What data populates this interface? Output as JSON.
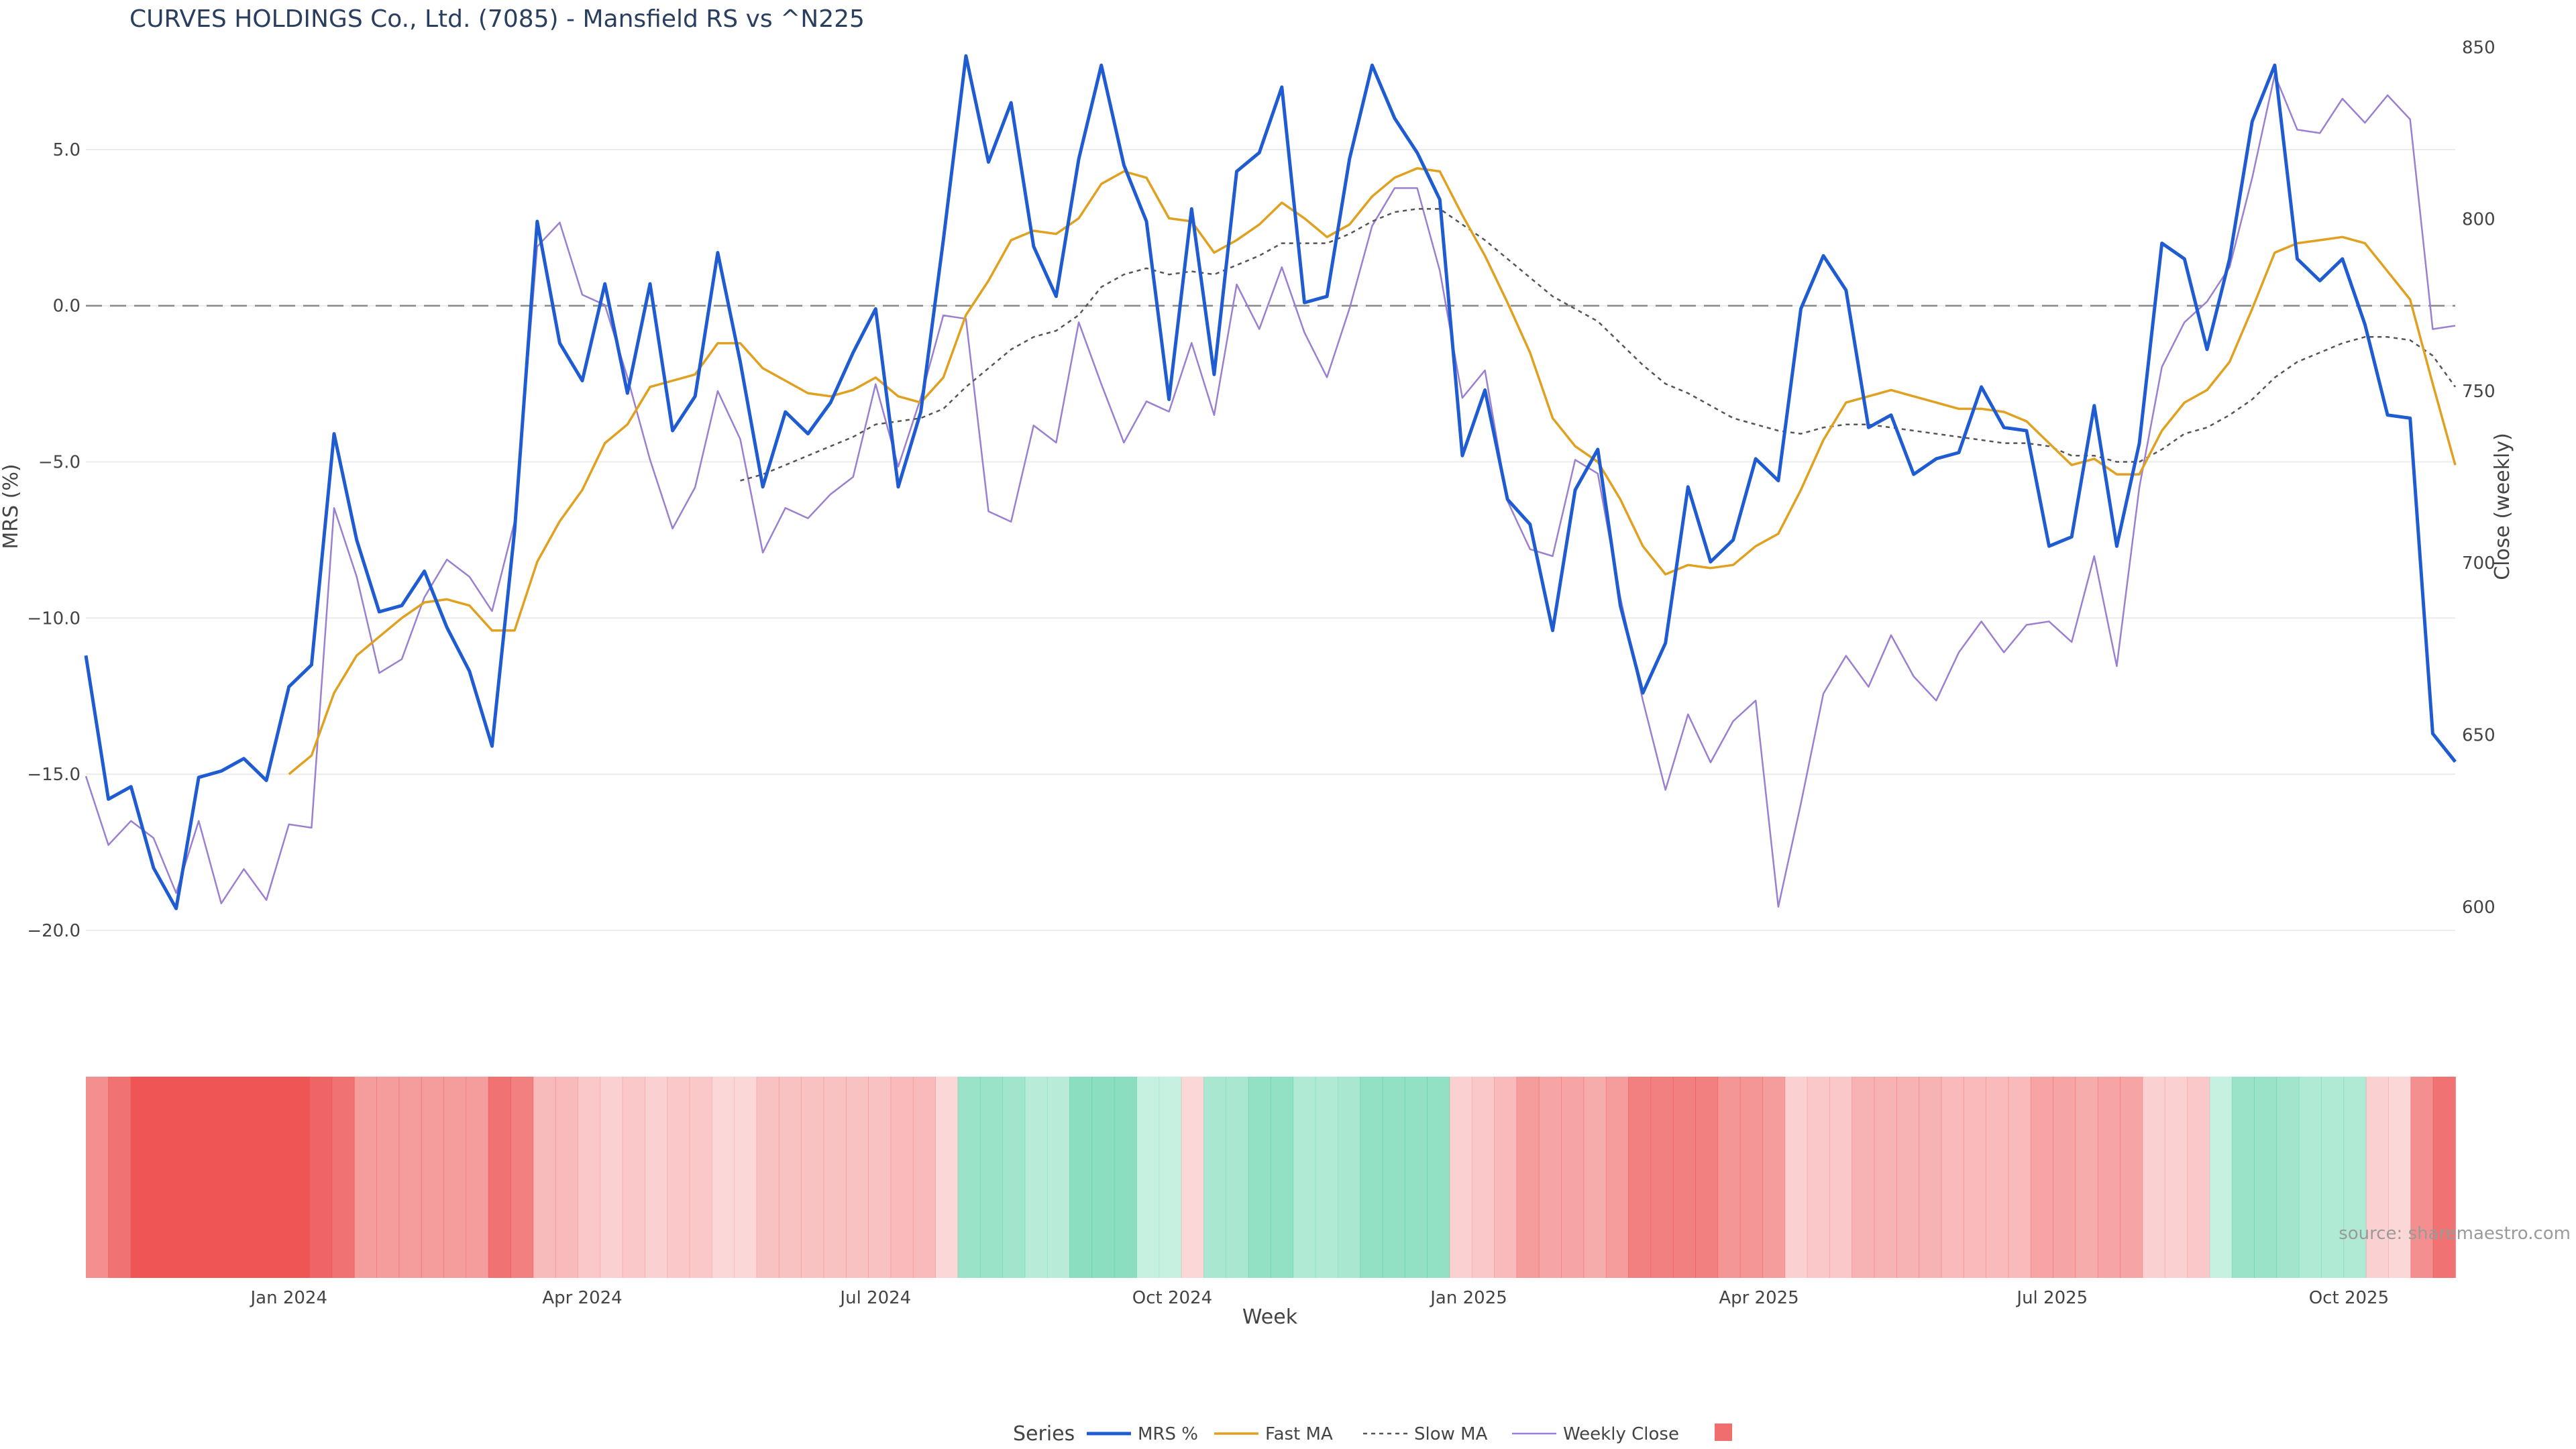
{
  "title": "CURVES HOLDINGS Co., Ltd. (7085) - Mansfield RS vs ^N225",
  "source": "source: sharemaestro.com",
  "chart_data": {
    "type": "line",
    "title": "CURVES HOLDINGS Co., Ltd. (7085) - Mansfield RS vs ^N225",
    "xlabel": "Week",
    "ylabel_left": "MRS (%)",
    "ylabel_right": "Close (weekly)",
    "x_start": "2023-10-30",
    "x_end": "2025-11-03",
    "x_ticks": [
      {
        "date": "2024-01-01",
        "label": "Jan 2024"
      },
      {
        "date": "2024-04-01",
        "label": "Apr 2024"
      },
      {
        "date": "2024-07-01",
        "label": "Jul 2024"
      },
      {
        "date": "2024-10-01",
        "label": "Oct 2024"
      },
      {
        "date": "2025-01-01",
        "label": "Jan 2025"
      },
      {
        "date": "2025-04-01",
        "label": "Apr 2025"
      },
      {
        "date": "2025-07-01",
        "label": "Jul 2025"
      },
      {
        "date": "2025-10-01",
        "label": "Oct 2025"
      }
    ],
    "y_left_ticks": [
      "5.0",
      "0.0",
      "−5.0",
      "−10.0",
      "−15.0",
      "−20.0"
    ],
    "y_left_range": [
      -22,
      8.5
    ],
    "y_right_ticks": [
      "850",
      "800",
      "750",
      "700",
      "650",
      "600"
    ],
    "y_right_range": [
      575,
      852
    ],
    "zero_line": 0,
    "grid": true,
    "legend_title": "Series",
    "legend_position": "bottom-center",
    "colors": {
      "mrs": "#1f5bd1",
      "fast": "#e0a020",
      "slow": "#555555",
      "close": "#9b7fd0",
      "strip_pos": "#4fcfa0",
      "strip_neg": "#ee5555"
    },
    "series": [
      {
        "name": "MRS %",
        "key": "mrs",
        "values": [
          -11.2,
          -15.8,
          -15.4,
          -18.0,
          -19.3,
          -15.1,
          -14.9,
          -14.5,
          -15.2,
          -12.2,
          -11.5,
          -4.1,
          -7.5,
          -9.8,
          -9.6,
          -8.5,
          -10.3,
          -11.7,
          -14.1,
          -7.2,
          2.7,
          -1.2,
          -2.4,
          0.7,
          -2.8,
          0.7,
          -4.0,
          -2.9,
          1.7,
          -1.8,
          -5.8,
          -3.4,
          -4.1,
          -3.1,
          -1.5,
          -0.1,
          -5.8,
          -3.4,
          2.1,
          8.0,
          4.6,
          6.5,
          1.9,
          0.3,
          4.7,
          7.7,
          4.5,
          2.7,
          -3.0,
          3.1,
          -2.2,
          4.3,
          4.9,
          7.0,
          0.1,
          0.3,
          4.7,
          7.7,
          6.0,
          4.9,
          3.4,
          -4.8,
          -2.7,
          -6.2,
          -7.0,
          -10.4,
          -5.9,
          -4.6,
          -9.6,
          -12.4,
          -10.8,
          -5.8,
          -8.2,
          -7.5,
          -4.9,
          -5.6,
          -0.1,
          1.6,
          0.5,
          -3.9,
          -3.5,
          -5.4,
          -4.9,
          -4.7,
          -2.6,
          -3.9,
          -4.0,
          -7.7,
          -7.4,
          -3.2,
          -7.7,
          -4.4,
          2.0,
          1.5,
          -1.4,
          1.5,
          5.9,
          7.7,
          1.5,
          0.8,
          1.5,
          -0.6,
          -3.5,
          -3.6,
          -13.7,
          -14.6
        ]
      },
      {
        "name": "Fast MA",
        "key": "fast",
        "values": [
          null,
          null,
          null,
          null,
          null,
          null,
          null,
          null,
          null,
          -15.0,
          -14.4,
          -12.4,
          -11.2,
          -10.6,
          -10.0,
          -9.5,
          -9.4,
          -9.6,
          -10.4,
          -10.4,
          -8.2,
          -6.9,
          -5.9,
          -4.4,
          -3.8,
          -2.6,
          -2.4,
          -2.2,
          -1.2,
          -1.2,
          -2.0,
          -2.4,
          -2.8,
          -2.9,
          -2.7,
          -2.3,
          -2.9,
          -3.1,
          -2.3,
          -0.3,
          0.8,
          2.1,
          2.4,
          2.3,
          2.8,
          3.9,
          4.3,
          4.1,
          2.8,
          2.7,
          1.7,
          2.1,
          2.6,
          3.3,
          2.8,
          2.2,
          2.6,
          3.5,
          4.1,
          4.4,
          4.3,
          2.9,
          1.6,
          0.1,
          -1.5,
          -3.6,
          -4.5,
          -5.0,
          -6.2,
          -7.7,
          -8.6,
          -8.3,
          -8.4,
          -8.3,
          -7.7,
          -7.3,
          -5.9,
          -4.3,
          -3.1,
          -2.9,
          -2.7,
          -2.9,
          -3.1,
          -3.3,
          -3.3,
          -3.4,
          -3.7,
          -4.4,
          -5.1,
          -4.9,
          -5.4,
          -5.4,
          -4.0,
          -3.1,
          -2.7,
          -1.8,
          -0.1,
          1.7,
          2.0,
          2.1,
          2.2,
          2.0,
          1.1,
          0.2,
          -2.5,
          -5.1
        ]
      },
      {
        "name": "Slow MA",
        "key": "slow",
        "values": [
          null,
          null,
          null,
          null,
          null,
          null,
          null,
          null,
          null,
          null,
          null,
          null,
          null,
          null,
          null,
          null,
          null,
          null,
          null,
          null,
          null,
          null,
          null,
          null,
          null,
          null,
          null,
          null,
          null,
          -5.6,
          -5.4,
          -5.1,
          -4.8,
          -4.5,
          -4.2,
          -3.8,
          -3.7,
          -3.6,
          -3.3,
          -2.6,
          -2.0,
          -1.4,
          -1.0,
          -0.8,
          -0.3,
          0.6,
          1.0,
          1.2,
          1.0,
          1.1,
          1.0,
          1.3,
          1.6,
          2.0,
          2.0,
          2.0,
          2.3,
          2.7,
          3.0,
          3.1,
          3.1,
          2.6,
          2.1,
          1.5,
          0.9,
          0.3,
          -0.1,
          -0.5,
          -1.2,
          -1.9,
          -2.5,
          -2.8,
          -3.2,
          -3.6,
          -3.8,
          -4.0,
          -4.1,
          -3.9,
          -3.8,
          -3.8,
          -3.9,
          -4.0,
          -4.1,
          -4.2,
          -4.3,
          -4.4,
          -4.4,
          -4.5,
          -4.8,
          -4.8,
          -5.0,
          -5.0,
          -4.6,
          -4.1,
          -3.9,
          -3.5,
          -3.0,
          -2.3,
          -1.8,
          -1.5,
          -1.2,
          -1.0,
          -1.0,
          -1.1,
          -1.6,
          -2.6
        ]
      },
      {
        "name": "Weekly Close",
        "key": "close",
        "axis": "right",
        "values": [
          638,
          618,
          625,
          620,
          604,
          625,
          601,
          611,
          602,
          624,
          623,
          716,
          696,
          668,
          672,
          690,
          701,
          696,
          686,
          712,
          792,
          799,
          778,
          775,
          754,
          730,
          710,
          722,
          750,
          736,
          703,
          716,
          713,
          720,
          725,
          752,
          728,
          748,
          772,
          771,
          715,
          712,
          740,
          735,
          770,
          752,
          735,
          747,
          744,
          764,
          743,
          781,
          768,
          786,
          767,
          754,
          774,
          798,
          809,
          809,
          785,
          748,
          756,
          718,
          704,
          702,
          730,
          726,
          690,
          660,
          634,
          656,
          642,
          654,
          660,
          600,
          630,
          662,
          673,
          664,
          679,
          667,
          660,
          674,
          683,
          674,
          682,
          683,
          677,
          702,
          670,
          722,
          757,
          770,
          776,
          786,
          812,
          842,
          826,
          825,
          835,
          828,
          836,
          829,
          768,
          769
        ]
      }
    ],
    "strip": {
      "name": "",
      "values": [
        -0.6,
        -0.8,
        -1.0,
        -1.0,
        -1.0,
        -1.0,
        -1.0,
        -1.0,
        -1.0,
        -1.0,
        -0.9,
        -0.8,
        -0.5,
        -0.5,
        -0.5,
        -0.5,
        -0.5,
        -0.5,
        -0.8,
        -0.7,
        -0.3,
        -0.3,
        -0.2,
        -0.15,
        -0.2,
        -0.15,
        -0.2,
        -0.2,
        -0.1,
        -0.1,
        -0.25,
        -0.25,
        -0.25,
        -0.25,
        -0.25,
        -0.25,
        -0.3,
        -0.3,
        -0.1,
        0.5,
        0.5,
        0.45,
        0.3,
        0.3,
        0.6,
        0.6,
        0.6,
        0.2,
        0.2,
        -0.1,
        0.4,
        0.4,
        0.55,
        0.55,
        0.35,
        0.35,
        0.4,
        0.55,
        0.55,
        0.55,
        0.55,
        -0.15,
        -0.2,
        -0.3,
        -0.5,
        -0.45,
        -0.45,
        -0.4,
        -0.5,
        -0.7,
        -0.7,
        -0.7,
        -0.7,
        -0.55,
        -0.55,
        -0.5,
        -0.15,
        -0.2,
        -0.2,
        -0.35,
        -0.35,
        -0.35,
        -0.35,
        -0.3,
        -0.3,
        -0.3,
        -0.3,
        -0.45,
        -0.45,
        -0.4,
        -0.45,
        -0.45,
        -0.15,
        -0.15,
        -0.2,
        0.2,
        0.5,
        0.5,
        0.45,
        0.35,
        0.35,
        0.35,
        -0.15,
        -0.1,
        -0.6,
        -0.8
      ]
    }
  }
}
